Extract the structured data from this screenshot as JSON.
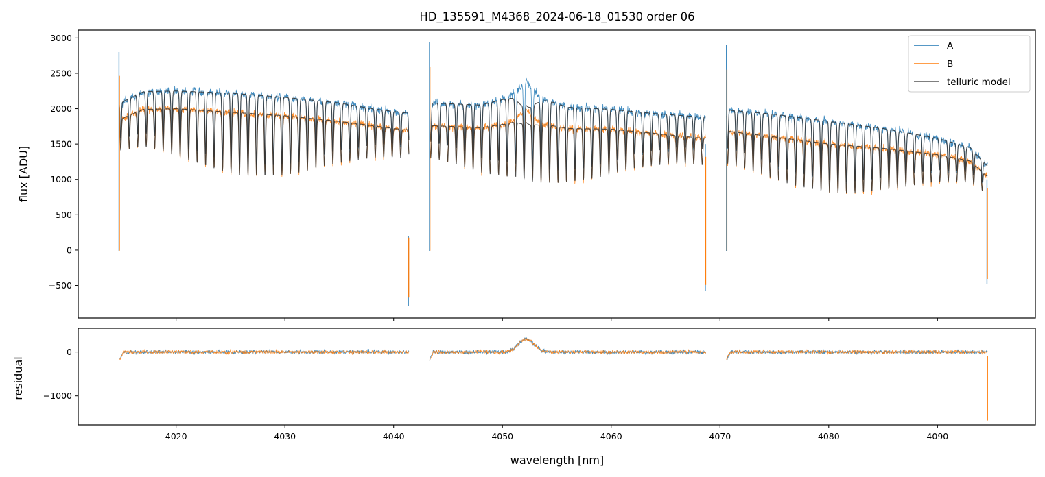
{
  "chart_data": {
    "type": "line",
    "title": "HD_135591_M4368_2024-06-18_01530  order 06",
    "xlabel": "wavelength [nm]",
    "xlim": [
      4011,
      4099
    ],
    "xticks": [
      4020,
      4030,
      4040,
      4050,
      4060,
      4070,
      4080,
      4090
    ],
    "segments": [
      [
        4014.8,
        4041.4
      ],
      [
        4043.3,
        4068.7
      ],
      [
        4070.6,
        4094.6
      ]
    ],
    "colors": {
      "A": "#1f77b4",
      "B": "#ff7f0e",
      "telluric": "#555555"
    },
    "top": {
      "ylabel": "flux [ADU]",
      "ylim": [
        -960,
        3110
      ],
      "yticks": [
        3000,
        2500,
        2000,
        1500,
        1000,
        500,
        0,
        -500
      ],
      "series": [
        {
          "name": "A",
          "continuum": {
            "x": [
              4015.0,
              4017.0,
              4020.0,
              4025.0,
              4030.0,
              4035.0,
              4038.0,
              4041.0,
              4043.5,
              4048.0,
              4050.5,
              4052.2,
              4053.5,
              4056.0,
              4060.0,
              4064.0,
              4068.5,
              4070.8,
              4075.0,
              4080.0,
              4085.0,
              4090.0,
              4093.0,
              4094.5
            ],
            "y": [
              2090,
              2240,
              2250,
              2220,
              2160,
              2080,
              2000,
              1940,
              2080,
              2050,
              2150,
              2390,
              2150,
              2020,
              1990,
              1930,
              1880,
              1980,
              1920,
              1820,
              1720,
              1580,
              1450,
              1200
            ]
          }
        },
        {
          "name": "B",
          "continuum": {
            "x": [
              4015.0,
              4017.0,
              4020.0,
              4025.0,
              4030.0,
              4035.0,
              4038.0,
              4041.0,
              4043.5,
              4048.0,
              4050.5,
              4052.2,
              4053.5,
              4056.0,
              4060.0,
              4064.0,
              4068.5,
              4070.8,
              4075.0,
              4080.0,
              4085.0,
              4090.0,
              4093.0,
              4094.5
            ],
            "y": [
              1860,
              1990,
              2000,
              1950,
              1900,
              1820,
              1760,
              1700,
              1760,
              1730,
              1790,
              1990,
              1790,
              1720,
              1710,
              1650,
              1580,
              1680,
              1600,
              1500,
              1440,
              1350,
              1260,
              1050
            ]
          }
        },
        {
          "name": "telluric model"
        }
      ],
      "spikes": [
        {
          "x": 4014.75,
          "min": -10,
          "max": 2800
        },
        {
          "x": 4041.35,
          "min": -790,
          "max": 200
        },
        {
          "x": 4043.3,
          "min": -10,
          "max": 2940
        },
        {
          "x": 4068.65,
          "min": -580,
          "max": 1500
        },
        {
          "x": 4070.6,
          "min": -10,
          "max": 2900
        },
        {
          "x": 4094.55,
          "min": -480,
          "max": 1000
        }
      ]
    },
    "bottom": {
      "ylabel": "residual",
      "ylim": [
        -1660,
        540
      ],
      "yticks": [
        0,
        -1000
      ],
      "residual_bump": {
        "x": [
          4052.2
        ],
        "amplitude": 300
      }
    },
    "legend": {
      "position": "top-right",
      "entries": [
        "A",
        "B",
        "telluric model"
      ]
    }
  }
}
